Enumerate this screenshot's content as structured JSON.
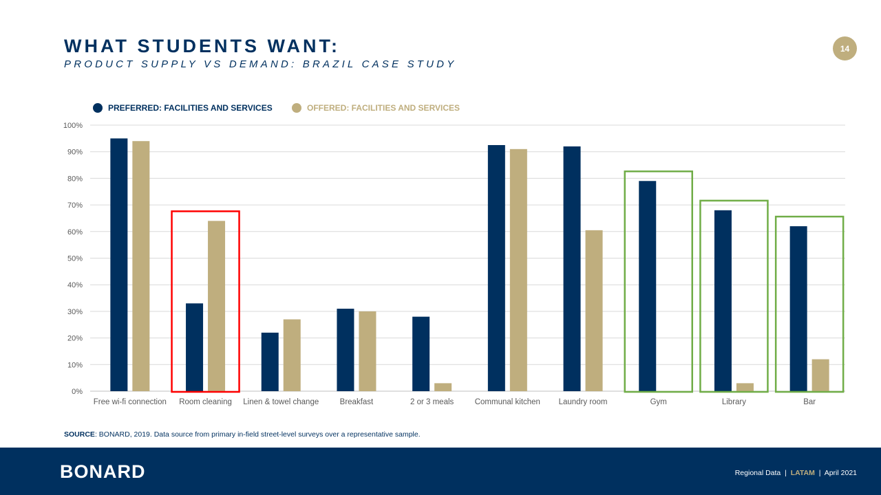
{
  "header": {
    "title": "WHAT STUDENTS WANT:",
    "subtitle": "PRODUCT SUPPLY VS DEMAND: BRAZIL CASE STUDY",
    "page_number": "14"
  },
  "chart_data": {
    "type": "bar",
    "categories": [
      "Free wi-fi connection",
      "Room cleaning",
      "Linen & towel change",
      "Breakfast",
      "2 or 3 meals",
      "Communal kitchen",
      "Laundry room",
      "Gym",
      "Library",
      "Bar"
    ],
    "series": [
      {
        "name": "PREFERRED: FACILITIES AND SERVICES",
        "color": "#00305f",
        "values": [
          95,
          33,
          22,
          31,
          28,
          92.5,
          92,
          79,
          68,
          62
        ]
      },
      {
        "name": "OFFERED: FACILITIES AND SERVICES",
        "color": "#bfae7e",
        "values": [
          94,
          64,
          27,
          30,
          3,
          91,
          60.5,
          0,
          3,
          12
        ]
      }
    ],
    "ylim": [
      0,
      100
    ],
    "yticks": [
      "0%",
      "10%",
      "20%",
      "30%",
      "40%",
      "50%",
      "60%",
      "70%",
      "80%",
      "90%",
      "100%"
    ],
    "grid": true,
    "legend": "top-left",
    "highlights": [
      {
        "category": "Room cleaning",
        "color": "#ff0000"
      },
      {
        "category": "Gym",
        "color": "#70ad47"
      },
      {
        "category": "Library",
        "color": "#70ad47"
      },
      {
        "category": "Bar",
        "color": "#70ad47"
      }
    ]
  },
  "source": {
    "label": "SOURCE",
    "text": ": BONARD, 2019. Data source from primary in-field street-level surveys over a representative sample."
  },
  "footer": {
    "logo": "BONARD",
    "region_label": "Regional Data",
    "region": "LATAM",
    "date": "April 2021",
    "separator": "|"
  }
}
